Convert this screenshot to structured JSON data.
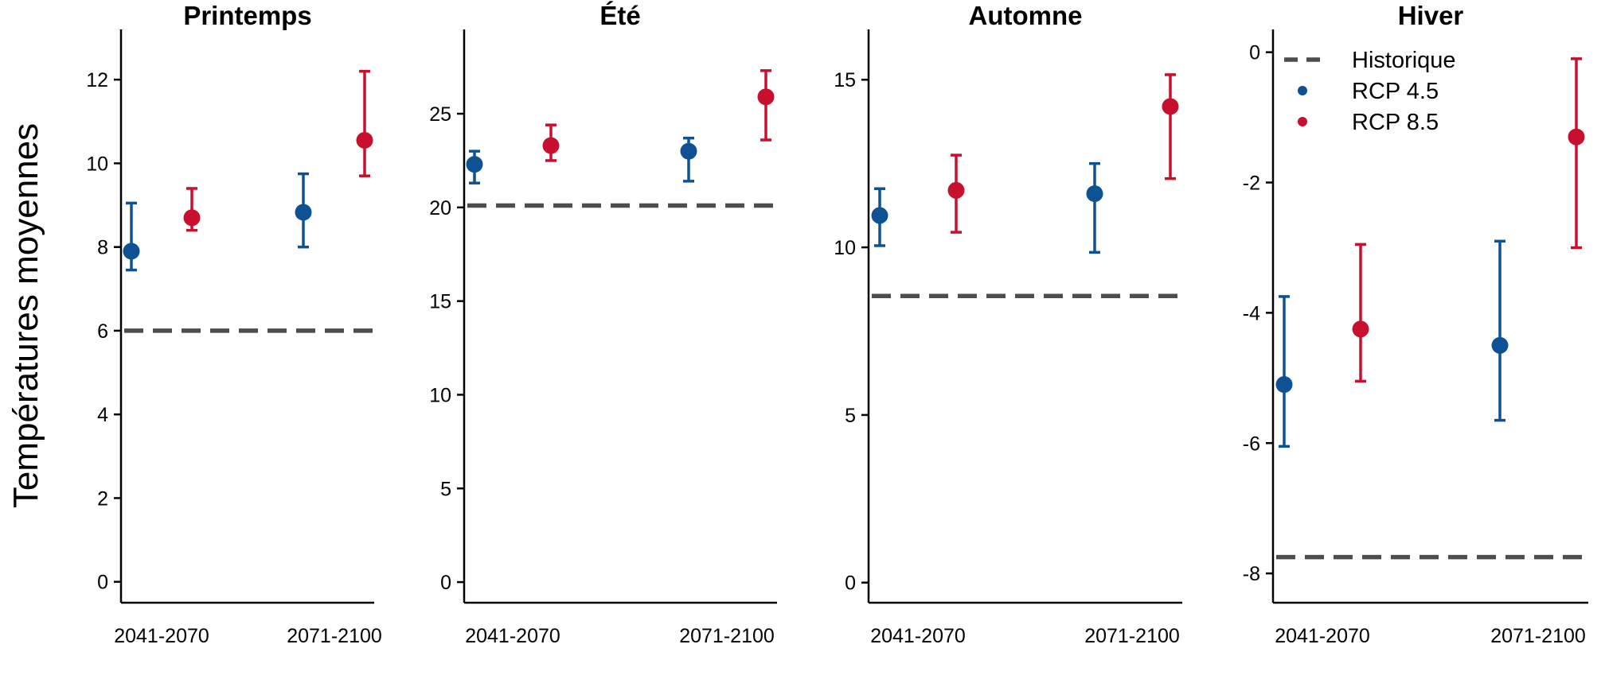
{
  "colors": {
    "rcp45": "#0f5294",
    "rcp85": "#c8102e",
    "historical": "#4d4d4d",
    "axis": "#000000"
  },
  "chart_data": {
    "type": "scatter",
    "ylabel": "Températures moyennes",
    "categories": [
      "2041-2070",
      "2071-2100"
    ],
    "legend": {
      "placement": "top-right-panel",
      "entries": [
        {
          "label": "Historique",
          "style": "dashed-line"
        },
        {
          "label": "RCP 4.5",
          "style": "point",
          "color": "#0f5294"
        },
        {
          "label": "RCP 8.5",
          "style": "point",
          "color": "#c8102e"
        }
      ]
    },
    "panels": [
      {
        "title": "Printemps",
        "ylim": [
          -0.5,
          13.2
        ],
        "yticks": [
          "0",
          "2",
          "4",
          "6",
          "8",
          "10",
          "12"
        ],
        "historical": 6.0,
        "series": [
          {
            "name": "RCP 4.5",
            "points": [
              {
                "x": "2041-2070",
                "y": 7.9,
                "low": 7.45,
                "high": 9.05
              },
              {
                "x": "2071-2100",
                "y": 8.83,
                "low": 8.0,
                "high": 9.75
              }
            ]
          },
          {
            "name": "RCP 8.5",
            "points": [
              {
                "x": "2041-2070",
                "y": 8.7,
                "low": 8.4,
                "high": 9.4
              },
              {
                "x": "2071-2100",
                "y": 10.55,
                "low": 9.7,
                "high": 12.2
              }
            ]
          }
        ]
      },
      {
        "title": "Été",
        "ylim": [
          -1.1,
          29.5
        ],
        "yticks": [
          "0",
          "5",
          "10",
          "15",
          "20",
          "25"
        ],
        "historical": 20.1,
        "series": [
          {
            "name": "RCP 4.5",
            "points": [
              {
                "x": "2041-2070",
                "y": 22.3,
                "low": 21.3,
                "high": 23.0
              },
              {
                "x": "2071-2100",
                "y": 23.0,
                "low": 21.4,
                "high": 23.7
              }
            ]
          },
          {
            "name": "RCP 8.5",
            "points": [
              {
                "x": "2041-2070",
                "y": 23.3,
                "low": 22.5,
                "high": 24.4
              },
              {
                "x": "2071-2100",
                "y": 25.9,
                "low": 23.6,
                "high": 27.3
              }
            ]
          }
        ]
      },
      {
        "title": "Automne",
        "ylim": [
          -0.6,
          16.5
        ],
        "yticks": [
          "0",
          "5",
          "10",
          "15"
        ],
        "historical": 8.55,
        "series": [
          {
            "name": "RCP 4.5",
            "points": [
              {
                "x": "2041-2070",
                "y": 10.95,
                "low": 10.05,
                "high": 11.75
              },
              {
                "x": "2071-2100",
                "y": 11.6,
                "low": 9.85,
                "high": 12.5
              }
            ]
          },
          {
            "name": "RCP 8.5",
            "points": [
              {
                "x": "2041-2070",
                "y": 11.7,
                "low": 10.45,
                "high": 12.75
              },
              {
                "x": "2071-2100",
                "y": 14.2,
                "low": 12.05,
                "high": 15.15
              }
            ]
          }
        ]
      },
      {
        "title": "Hiver",
        "ylim": [
          -8.45,
          0.35
        ],
        "yticks": [
          "-8",
          "-6",
          "-4",
          "-2",
          "0"
        ],
        "historical": -7.75,
        "series": [
          {
            "name": "RCP 4.5",
            "points": [
              {
                "x": "2041-2070",
                "y": -5.1,
                "low": -6.05,
                "high": -3.75
              },
              {
                "x": "2071-2100",
                "y": -4.5,
                "low": -5.65,
                "high": -2.9
              }
            ]
          },
          {
            "name": "RCP 8.5",
            "points": [
              {
                "x": "2041-2070",
                "y": -4.25,
                "low": -5.05,
                "high": -2.95
              },
              {
                "x": "2071-2100",
                "y": -1.3,
                "low": -3.0,
                "high": -0.1
              }
            ]
          }
        ]
      }
    ]
  }
}
